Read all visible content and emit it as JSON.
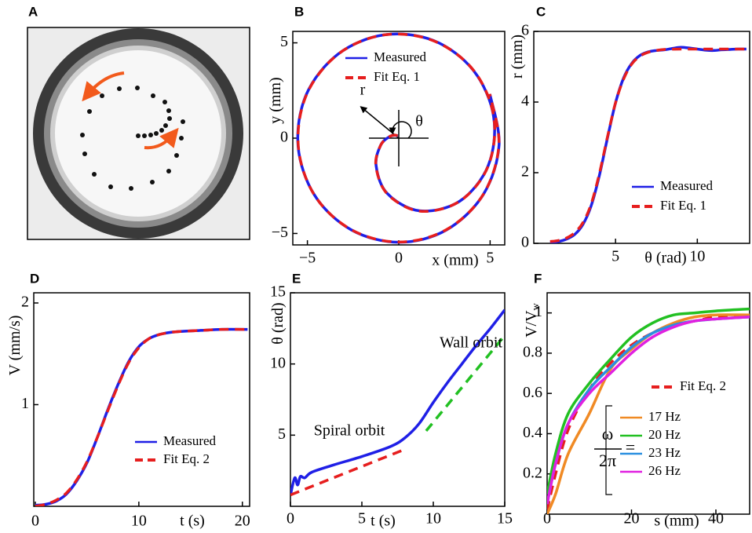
{
  "chart_data": [
    {
      "type": "image",
      "panel": "A"
    },
    {
      "type": "line",
      "panel": "B",
      "xlabel": "x (mm)",
      "ylabel": "y (mm)",
      "xlim": [
        -5.8,
        5.8
      ],
      "ylim": [
        -5.6,
        5.6
      ],
      "xticks": [
        {
          "value": -5,
          "label": "−5"
        },
        0,
        5
      ],
      "yticks": [
        {
          "value": -5,
          "label": "−5"
        },
        0,
        5
      ],
      "annotations": [
        "r",
        "θ"
      ],
      "legend": "upper left",
      "series": [
        {
          "name": "Measured",
          "color": "#1f1fe6",
          "dashed": false,
          "x": [
            -0.05,
            -0.2,
            -0.52,
            -0.99,
            -1.24,
            -0.63,
            1.13,
            3.33,
            4.9,
            5.19,
            4.08,
            1.9,
            -0.8,
            -3.32,
            -5.06,
            -5.51,
            -4.61,
            -2.6,
            0.02,
            2.6,
            4.63,
            5.49,
            4.99
          ],
          "values": [
            0.11,
            0.15,
            0.07,
            -0.37,
            -1.44,
            -2.9,
            -3.81,
            -3.31,
            -1.43,
            1.14,
            3.56,
            5.12,
            5.42,
            4.41,
            2.29,
            -0.41,
            -2.99,
            -4.81,
            -5.46,
            -4.82,
            -2.95,
            -0.36,
            2.31
          ]
        },
        {
          "name": "Fit Eq. 1",
          "color": "#e61e1e",
          "dashed": true,
          "x": [
            -0.06,
            -0.22,
            -0.54,
            -1.0,
            -1.25,
            -0.62,
            1.15,
            3.35,
            4.9,
            5.2,
            4.1,
            1.92,
            -0.78,
            -3.3,
            -5.04,
            -5.5,
            -4.62,
            -2.62,
            0.0,
            2.61,
            4.62,
            5.48,
            4.98
          ],
          "values": [
            0.12,
            0.16,
            0.06,
            -0.39,
            -1.47,
            -2.93,
            -3.83,
            -3.3,
            -1.45,
            1.12,
            3.55,
            5.1,
            5.42,
            4.42,
            2.3,
            -0.4,
            -2.98,
            -4.79,
            -5.45,
            -4.8,
            -2.96,
            -0.35,
            2.32
          ]
        }
      ]
    },
    {
      "type": "line",
      "panel": "C",
      "xlabel": "θ (rad)",
      "ylabel": "r (mm)",
      "xlim": [
        0,
        13.2
      ],
      "ylim": [
        0,
        6
      ],
      "xticks": [
        5,
        10
      ],
      "yticks": [
        0,
        2,
        4,
        6
      ],
      "legend": "lower right",
      "series": [
        {
          "name": "Measured",
          "color": "#1f1fe6",
          "dashed": false,
          "x": [
            1,
            1.5,
            2,
            2.5,
            3,
            3.5,
            4,
            4.5,
            5,
            5.5,
            6,
            6.5,
            7,
            7.5,
            8,
            8.5,
            9,
            9.5,
            10,
            10.5,
            11,
            11.5,
            12,
            12.5,
            13
          ],
          "values": [
            0.02,
            0.05,
            0.12,
            0.25,
            0.53,
            1.05,
            1.9,
            2.97,
            3.98,
            4.69,
            5.1,
            5.32,
            5.42,
            5.46,
            5.48,
            5.52,
            5.55,
            5.53,
            5.5,
            5.47,
            5.46,
            5.48,
            5.49,
            5.5,
            5.5
          ]
        },
        {
          "name": "Fit Eq. 1",
          "color": "#e61e1e",
          "dashed": true,
          "x": [
            1,
            1.5,
            2,
            2.5,
            3,
            3.5,
            4,
            4.5,
            5,
            5.5,
            6,
            6.5,
            7,
            7.5,
            8,
            9,
            10,
            11,
            12,
            13
          ],
          "values": [
            0.05,
            0.08,
            0.15,
            0.3,
            0.58,
            1.1,
            1.95,
            3.0,
            3.98,
            4.66,
            5.08,
            5.3,
            5.41,
            5.46,
            5.49,
            5.5,
            5.5,
            5.5,
            5.5,
            5.5
          ]
        }
      ]
    },
    {
      "type": "line",
      "panel": "D",
      "xlabel": "t (s)",
      "ylabel": "V (mm/s)",
      "xlim": [
        -0.15,
        20.7
      ],
      "ylim": [
        0,
        2.1
      ],
      "xticks": [
        0,
        10,
        20
      ],
      "yticks": [
        1,
        2
      ],
      "legend": "lower right",
      "series": [
        {
          "name": "Measured",
          "color": "#1f1fe6",
          "dashed": false,
          "x": [
            0,
            1,
            2,
            3,
            4,
            5,
            6,
            7,
            8,
            9,
            10,
            11,
            12,
            13,
            14,
            16,
            18,
            20.5
          ],
          "values": [
            0.01,
            0.02,
            0.05,
            0.12,
            0.25,
            0.43,
            0.68,
            0.95,
            1.2,
            1.42,
            1.57,
            1.65,
            1.69,
            1.71,
            1.72,
            1.73,
            1.74,
            1.74
          ]
        },
        {
          "name": "Fit Eq. 2",
          "color": "#e61e1e",
          "dashed": true,
          "x": [
            0,
            1,
            2,
            3,
            4,
            5,
            6,
            7,
            8,
            9,
            10,
            11,
            12,
            13,
            14,
            16,
            18,
            20.5
          ],
          "values": [
            0.0,
            0.02,
            0.06,
            0.13,
            0.26,
            0.44,
            0.68,
            0.94,
            1.19,
            1.41,
            1.56,
            1.65,
            1.69,
            1.71,
            1.72,
            1.73,
            1.74,
            1.74
          ]
        }
      ]
    },
    {
      "type": "line",
      "panel": "E",
      "xlabel": "t (s)",
      "ylabel": "θ (rad)",
      "xlim": [
        0,
        15
      ],
      "ylim": [
        0,
        15
      ],
      "xticks": [
        0,
        5,
        10,
        15
      ],
      "yticks": [
        5,
        10,
        15
      ],
      "annotations": [
        "Wall orbit",
        "Spiral orbit"
      ],
      "series": [
        {
          "color": "#1f1fe6",
          "dashed": false,
          "x": [
            0,
            0.3,
            0.5,
            0.7,
            1,
            1.5,
            3,
            5,
            7,
            8,
            9,
            10,
            11,
            12,
            13,
            14,
            15
          ],
          "values": [
            0.8,
            2.0,
            1.5,
            2.1,
            2.0,
            2.4,
            2.9,
            3.5,
            4.2,
            4.8,
            5.8,
            7.3,
            8.7,
            10.0,
            11.3,
            12.5,
            13.8
          ]
        },
        {
          "color": "#e61e1e",
          "dashed": true,
          "x": [
            0,
            8
          ],
          "values": [
            0.8,
            4.0
          ]
        },
        {
          "color": "#22c022",
          "dashed": true,
          "x": [
            9.5,
            15
          ],
          "values": [
            5.3,
            12.0
          ]
        }
      ]
    },
    {
      "type": "line",
      "panel": "F",
      "xlabel": "s (mm)",
      "ylabel": "V/V",
      "ylabel_subscript": "w",
      "xlim": [
        0,
        48
      ],
      "ylim": [
        0,
        1.1
      ],
      "xticks": [
        0,
        20,
        40
      ],
      "yticks": [
        0.2,
        0.4,
        0.6,
        0.8,
        1
      ],
      "legend_title": {
        "numerator": "ω",
        "denominator": "2π",
        "sign": "="
      },
      "legend": "lower right",
      "series": [
        {
          "name": "Fit Eq. 2",
          "color": "#e61e1e",
          "dashed": true,
          "x": [
            0,
            2,
            5,
            10,
            15,
            20,
            25,
            30,
            35,
            40,
            48
          ],
          "values": [
            0.02,
            0.2,
            0.42,
            0.62,
            0.75,
            0.84,
            0.9,
            0.94,
            0.96,
            0.98,
            0.99
          ]
        },
        {
          "name": "17 Hz",
          "color": "#f08a24",
          "dashed": false,
          "x": [
            0,
            2,
            5,
            10,
            15,
            20,
            25,
            30,
            35,
            40,
            48
          ],
          "values": [
            0.0,
            0.1,
            0.3,
            0.5,
            0.72,
            0.82,
            0.9,
            0.95,
            0.98,
            0.99,
            0.99
          ]
        },
        {
          "name": "20 Hz",
          "color": "#22c022",
          "dashed": false,
          "x": [
            0,
            2,
            5,
            10,
            15,
            20,
            25,
            30,
            35,
            40,
            48
          ],
          "values": [
            0.1,
            0.3,
            0.5,
            0.65,
            0.77,
            0.88,
            0.95,
            0.99,
            1.0,
            1.01,
            1.02
          ]
        },
        {
          "name": "23 Hz",
          "color": "#2a8fe0",
          "dashed": false,
          "x": [
            0,
            2,
            5,
            10,
            15,
            20,
            25,
            30,
            35,
            40,
            48
          ],
          "values": [
            0.05,
            0.25,
            0.45,
            0.62,
            0.73,
            0.83,
            0.9,
            0.94,
            0.96,
            0.97,
            0.98
          ]
        },
        {
          "name": "26 Hz",
          "color": "#e020e0",
          "dashed": false,
          "x": [
            0,
            2,
            5,
            10,
            15,
            20,
            25,
            30,
            35,
            40,
            48
          ],
          "values": [
            0.05,
            0.25,
            0.45,
            0.6,
            0.7,
            0.8,
            0.88,
            0.93,
            0.96,
            0.97,
            0.98
          ]
        }
      ]
    }
  ]
}
